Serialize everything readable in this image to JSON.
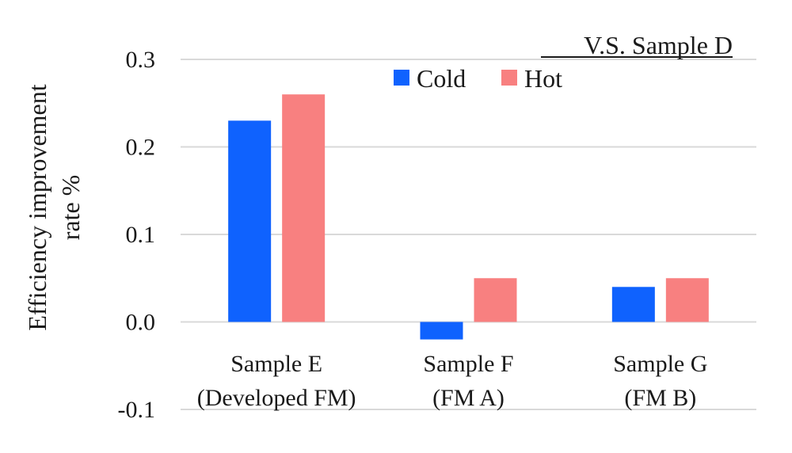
{
  "chart_data": {
    "type": "bar",
    "title": "V.S. Sample D",
    "ylabel": [
      "Efficiency  improvement",
      "rate %"
    ],
    "xlabel": "",
    "ylim": [
      -0.1,
      0.3
    ],
    "yticks": [
      "0.3",
      "0.2",
      "0.1",
      "0.0",
      "-0.1"
    ],
    "ytick_values": [
      0.3,
      0.2,
      0.1,
      0.0,
      -0.1
    ],
    "categories": [
      [
        "Sample E",
        "(Developed FM)"
      ],
      [
        "Sample F",
        "(FM A)"
      ],
      [
        "Sample G",
        "(FM B)"
      ]
    ],
    "series": [
      {
        "name": "Cold",
        "color": "#0f62fe",
        "values": [
          0.23,
          -0.02,
          0.04
        ]
      },
      {
        "name": "Hot",
        "color": "#f88080",
        "values": [
          0.26,
          0.05,
          0.05
        ]
      }
    ],
    "grid": true,
    "legend": "top-right"
  }
}
